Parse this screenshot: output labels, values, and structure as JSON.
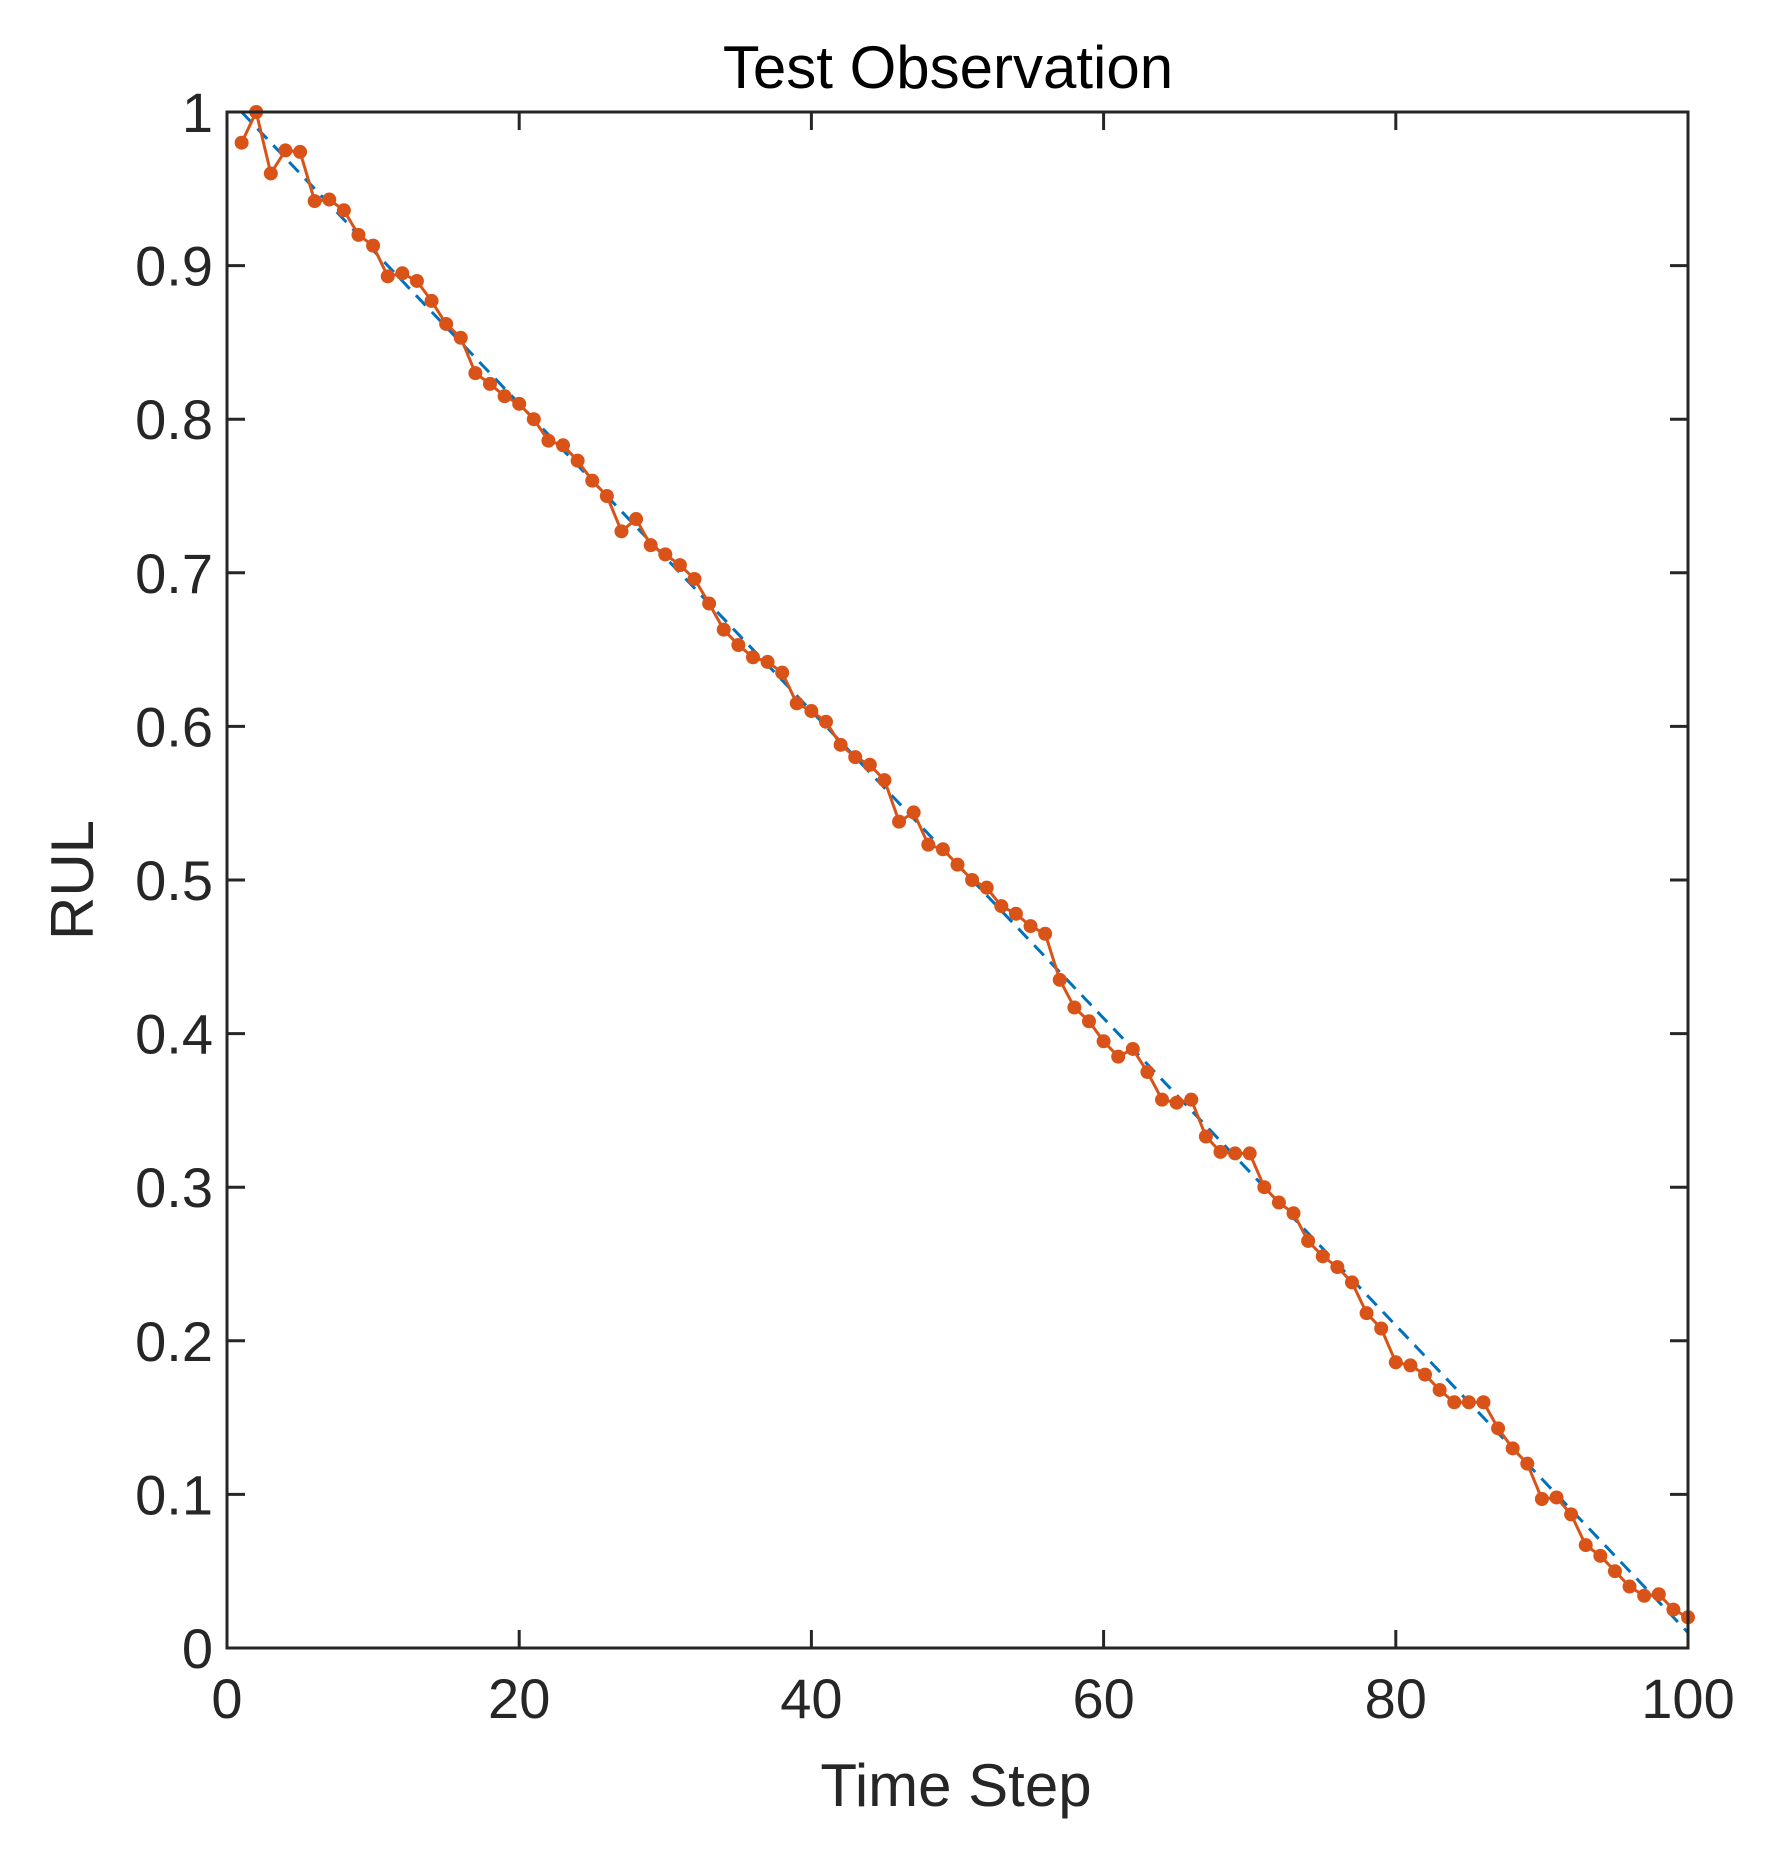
{
  "chart_data": {
    "type": "line",
    "title": "Test Observation",
    "xlabel": "Time Step",
    "ylabel": "RUL",
    "xlim": [
      0,
      100
    ],
    "ylim": [
      0,
      1
    ],
    "xticks": [
      "0",
      "20",
      "40",
      "60",
      "80",
      "100"
    ],
    "yticks": [
      "0",
      "0.1",
      "0.2",
      "0.3",
      "0.4",
      "0.5",
      "0.6",
      "0.7",
      "0.8",
      "0.9",
      "1"
    ],
    "grid": false,
    "colors": {
      "predicted": "#D95319",
      "true": "#0072BD",
      "axes": "#262626"
    },
    "series": [
      {
        "style": "dashed",
        "x": [
          1,
          100
        ],
        "y": [
          1.0,
          0.01
        ]
      },
      {
        "style": "line-markers",
        "x": [
          1,
          2,
          3,
          4,
          5,
          6,
          7,
          8,
          9,
          10,
          11,
          12,
          13,
          14,
          15,
          16,
          17,
          18,
          19,
          20,
          21,
          22,
          23,
          24,
          25,
          26,
          27,
          28,
          29,
          30,
          31,
          32,
          33,
          34,
          35,
          36,
          37,
          38,
          39,
          40,
          41,
          42,
          43,
          44,
          45,
          46,
          47,
          48,
          49,
          50,
          51,
          52,
          53,
          54,
          55,
          56,
          57,
          58,
          59,
          60,
          61,
          62,
          63,
          64,
          65,
          66,
          67,
          68,
          69,
          70,
          71,
          72,
          73,
          74,
          75,
          76,
          77,
          78,
          79,
          80,
          81,
          82,
          83,
          84,
          85,
          86,
          87,
          88,
          89,
          90,
          91,
          92,
          93,
          94,
          95,
          96,
          97,
          98,
          99,
          100
        ],
        "y": [
          0.98,
          1.0,
          0.96,
          0.975,
          0.974,
          0.942,
          0.943,
          0.936,
          0.92,
          0.913,
          0.893,
          0.895,
          0.89,
          0.877,
          0.862,
          0.853,
          0.83,
          0.823,
          0.815,
          0.81,
          0.8,
          0.786,
          0.783,
          0.773,
          0.76,
          0.75,
          0.727,
          0.735,
          0.718,
          0.712,
          0.705,
          0.696,
          0.68,
          0.663,
          0.653,
          0.645,
          0.642,
          0.635,
          0.615,
          0.61,
          0.603,
          0.588,
          0.58,
          0.575,
          0.565,
          0.538,
          0.544,
          0.523,
          0.52,
          0.51,
          0.5,
          0.495,
          0.483,
          0.478,
          0.47,
          0.465,
          0.435,
          0.417,
          0.408,
          0.395,
          0.385,
          0.39,
          0.375,
          0.357,
          0.355,
          0.357,
          0.333,
          0.323,
          0.322,
          0.322,
          0.3,
          0.29,
          0.283,
          0.265,
          0.255,
          0.248,
          0.238,
          0.218,
          0.208,
          0.186,
          0.184,
          0.178,
          0.168,
          0.16,
          0.16,
          0.16,
          0.143,
          0.13,
          0.12,
          0.097,
          0.098,
          0.087,
          0.067,
          0.06,
          0.05,
          0.04,
          0.034,
          0.035,
          0.025,
          0.02
        ]
      }
    ]
  }
}
